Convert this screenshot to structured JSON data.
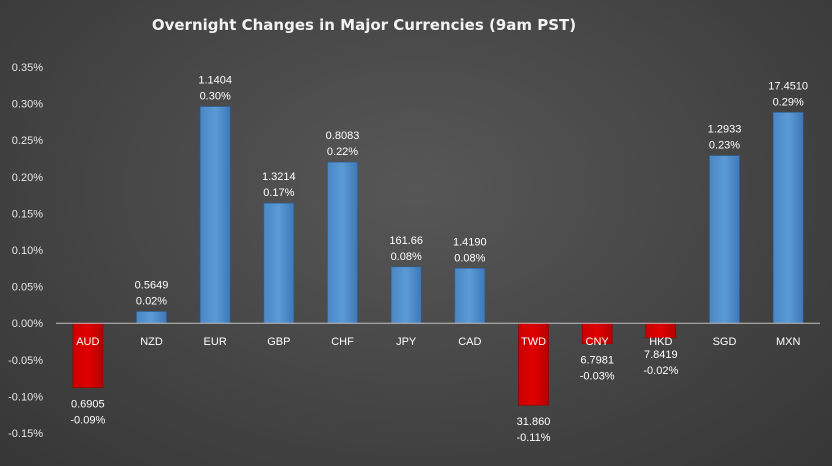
{
  "chart_data": {
    "type": "bar",
    "title": "Overnight Changes in Major Currencies (9am PST)",
    "categories": [
      "AUD",
      "NZD",
      "EUR",
      "GBP",
      "CHF",
      "JPY",
      "CAD",
      "TWD",
      "CNY",
      "HKD",
      "SGD",
      "MXN"
    ],
    "values": [
      -0.09,
      0.02,
      0.3,
      0.17,
      0.22,
      0.08,
      0.08,
      -0.11,
      -0.03,
      -0.02,
      0.23,
      0.29
    ],
    "bar_heights_pct": [
      -0.088,
      0.016,
      0.296,
      0.164,
      0.22,
      0.077,
      0.075,
      -0.112,
      -0.028,
      -0.02,
      0.229,
      0.288
    ],
    "rates": [
      "0.6905",
      "0.5649",
      "1.1404",
      "1.3214",
      "0.8083",
      "161.66",
      "1.4190",
      "31.860",
      "6.7981",
      "7.8419",
      "1.2933",
      "17.4510"
    ],
    "change_labels": [
      "-0.09%",
      "0.02%",
      "0.30%",
      "0.17%",
      "0.22%",
      "0.08%",
      "0.08%",
      "-0.11%",
      "-0.03%",
      "-0.02%",
      "0.23%",
      "0.29%"
    ],
    "y_ticks": [
      0.35,
      0.3,
      0.25,
      0.2,
      0.15,
      0.1,
      0.05,
      0.0,
      -0.05,
      -0.1,
      -0.15
    ],
    "y_tick_labels": [
      "0.35%",
      "0.30%",
      "0.25%",
      "0.20%",
      "0.15%",
      "0.10%",
      "0.05%",
      "0.00%",
      "-0.05%",
      "-0.10%",
      "-0.15%"
    ],
    "ylim": [
      -0.15,
      0.35
    ],
    "xlabel": "",
    "ylabel": "",
    "grid": false,
    "legend": "none",
    "colors": {
      "positive": "#5b9bd5",
      "negative": "#e00000",
      "axis": "#bfbfbf"
    }
  }
}
